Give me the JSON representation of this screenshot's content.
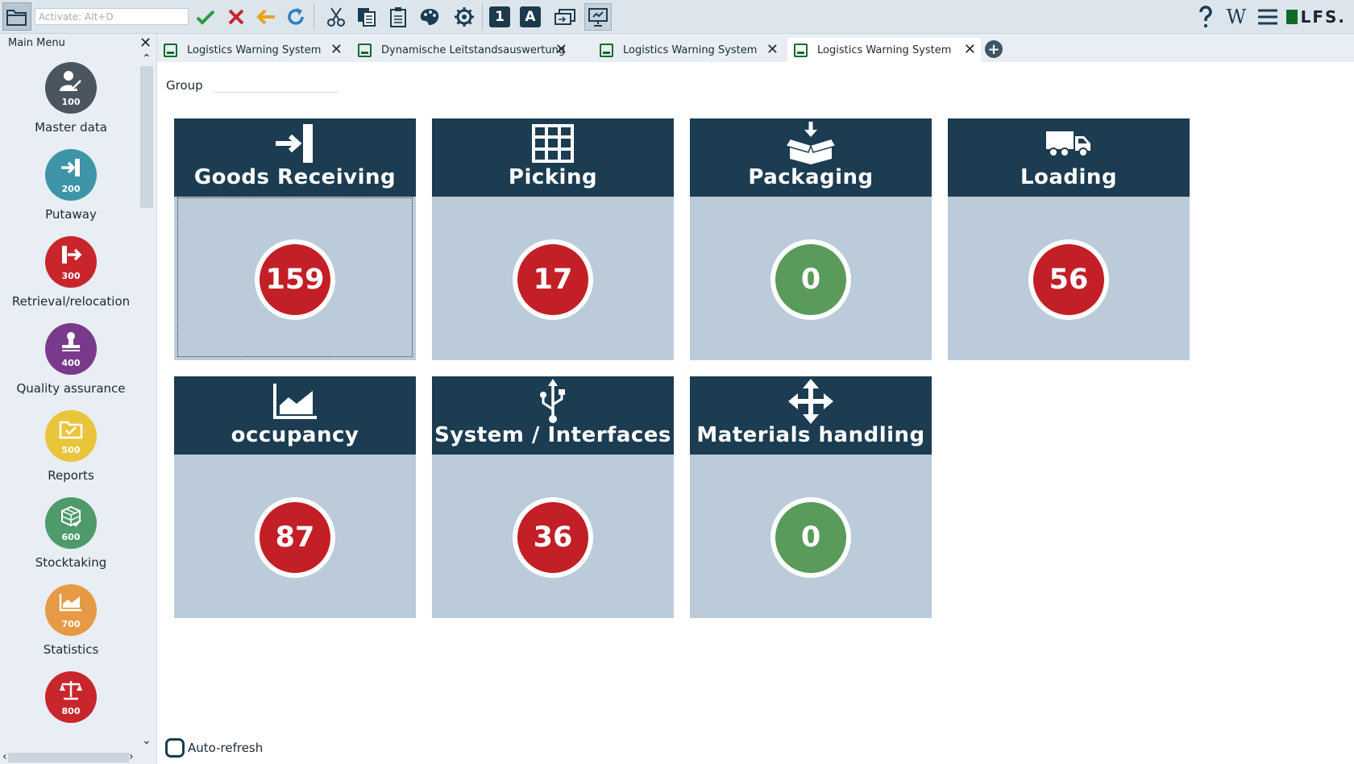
{
  "toolbar": {
    "search_placeholder": "Activate: Alt+D",
    "logo_text": "LFS."
  },
  "sidebar": {
    "title": "Main Menu",
    "items": [
      {
        "label": "Master data",
        "number": "100",
        "color": "#4a5560",
        "icon": "user-wrench-icon"
      },
      {
        "label": "Putaway",
        "number": "200",
        "color": "#3e95a8",
        "icon": "sign-in-icon"
      },
      {
        "label": "Retrieval/relocation",
        "number": "300",
        "color": "#c8262c",
        "icon": "sign-out-icon"
      },
      {
        "label": "Quality assurance",
        "number": "400",
        "color": "#7a3a8c",
        "icon": "stamp-icon"
      },
      {
        "label": "Reports",
        "number": "500",
        "color": "#e9c53c",
        "icon": "folder-check-icon"
      },
      {
        "label": "Stocktaking",
        "number": "600",
        "color": "#4e9a6a",
        "icon": "boxes-check-icon"
      },
      {
        "label": "Statistics",
        "number": "700",
        "color": "#e79a45",
        "icon": "area-chart-icon"
      },
      {
        "label": "",
        "number": "800",
        "color": "#c8262c",
        "icon": "scale-icon"
      }
    ]
  },
  "tabs": [
    {
      "label": "Logistics Warning System",
      "active": false
    },
    {
      "label": "Dynamische Leitstandsauswertung",
      "active": false
    },
    {
      "label": "Logistics Warning System",
      "active": false
    },
    {
      "label": "Logistics Warning System",
      "active": true
    }
  ],
  "content": {
    "group_label": "Group",
    "group_value": "",
    "auto_refresh_label": "Auto-refresh"
  },
  "tiles": [
    {
      "title": "Goods Receiving",
      "count": "159",
      "status": "red",
      "icon": "sign-in-icon"
    },
    {
      "title": "Picking",
      "count": "17",
      "status": "red",
      "icon": "shelf-grid-icon"
    },
    {
      "title": "Packaging",
      "count": "0",
      "status": "green",
      "icon": "box-download-icon"
    },
    {
      "title": "Loading",
      "count": "56",
      "status": "red",
      "icon": "truck-icon"
    },
    {
      "title": "occupancy",
      "count": "87",
      "status": "red",
      "icon": "area-chart-icon"
    },
    {
      "title": "System / Interfaces",
      "count": "36",
      "status": "red",
      "icon": "usb-icon"
    },
    {
      "title": "Materials handling",
      "count": "0",
      "status": "green",
      "icon": "move-arrows-icon"
    }
  ],
  "colors": {
    "status_red": "#c21f26",
    "status_green": "#5a9a5a",
    "tile_header": "#1c3c51",
    "tile_body": "#bccbd9"
  }
}
